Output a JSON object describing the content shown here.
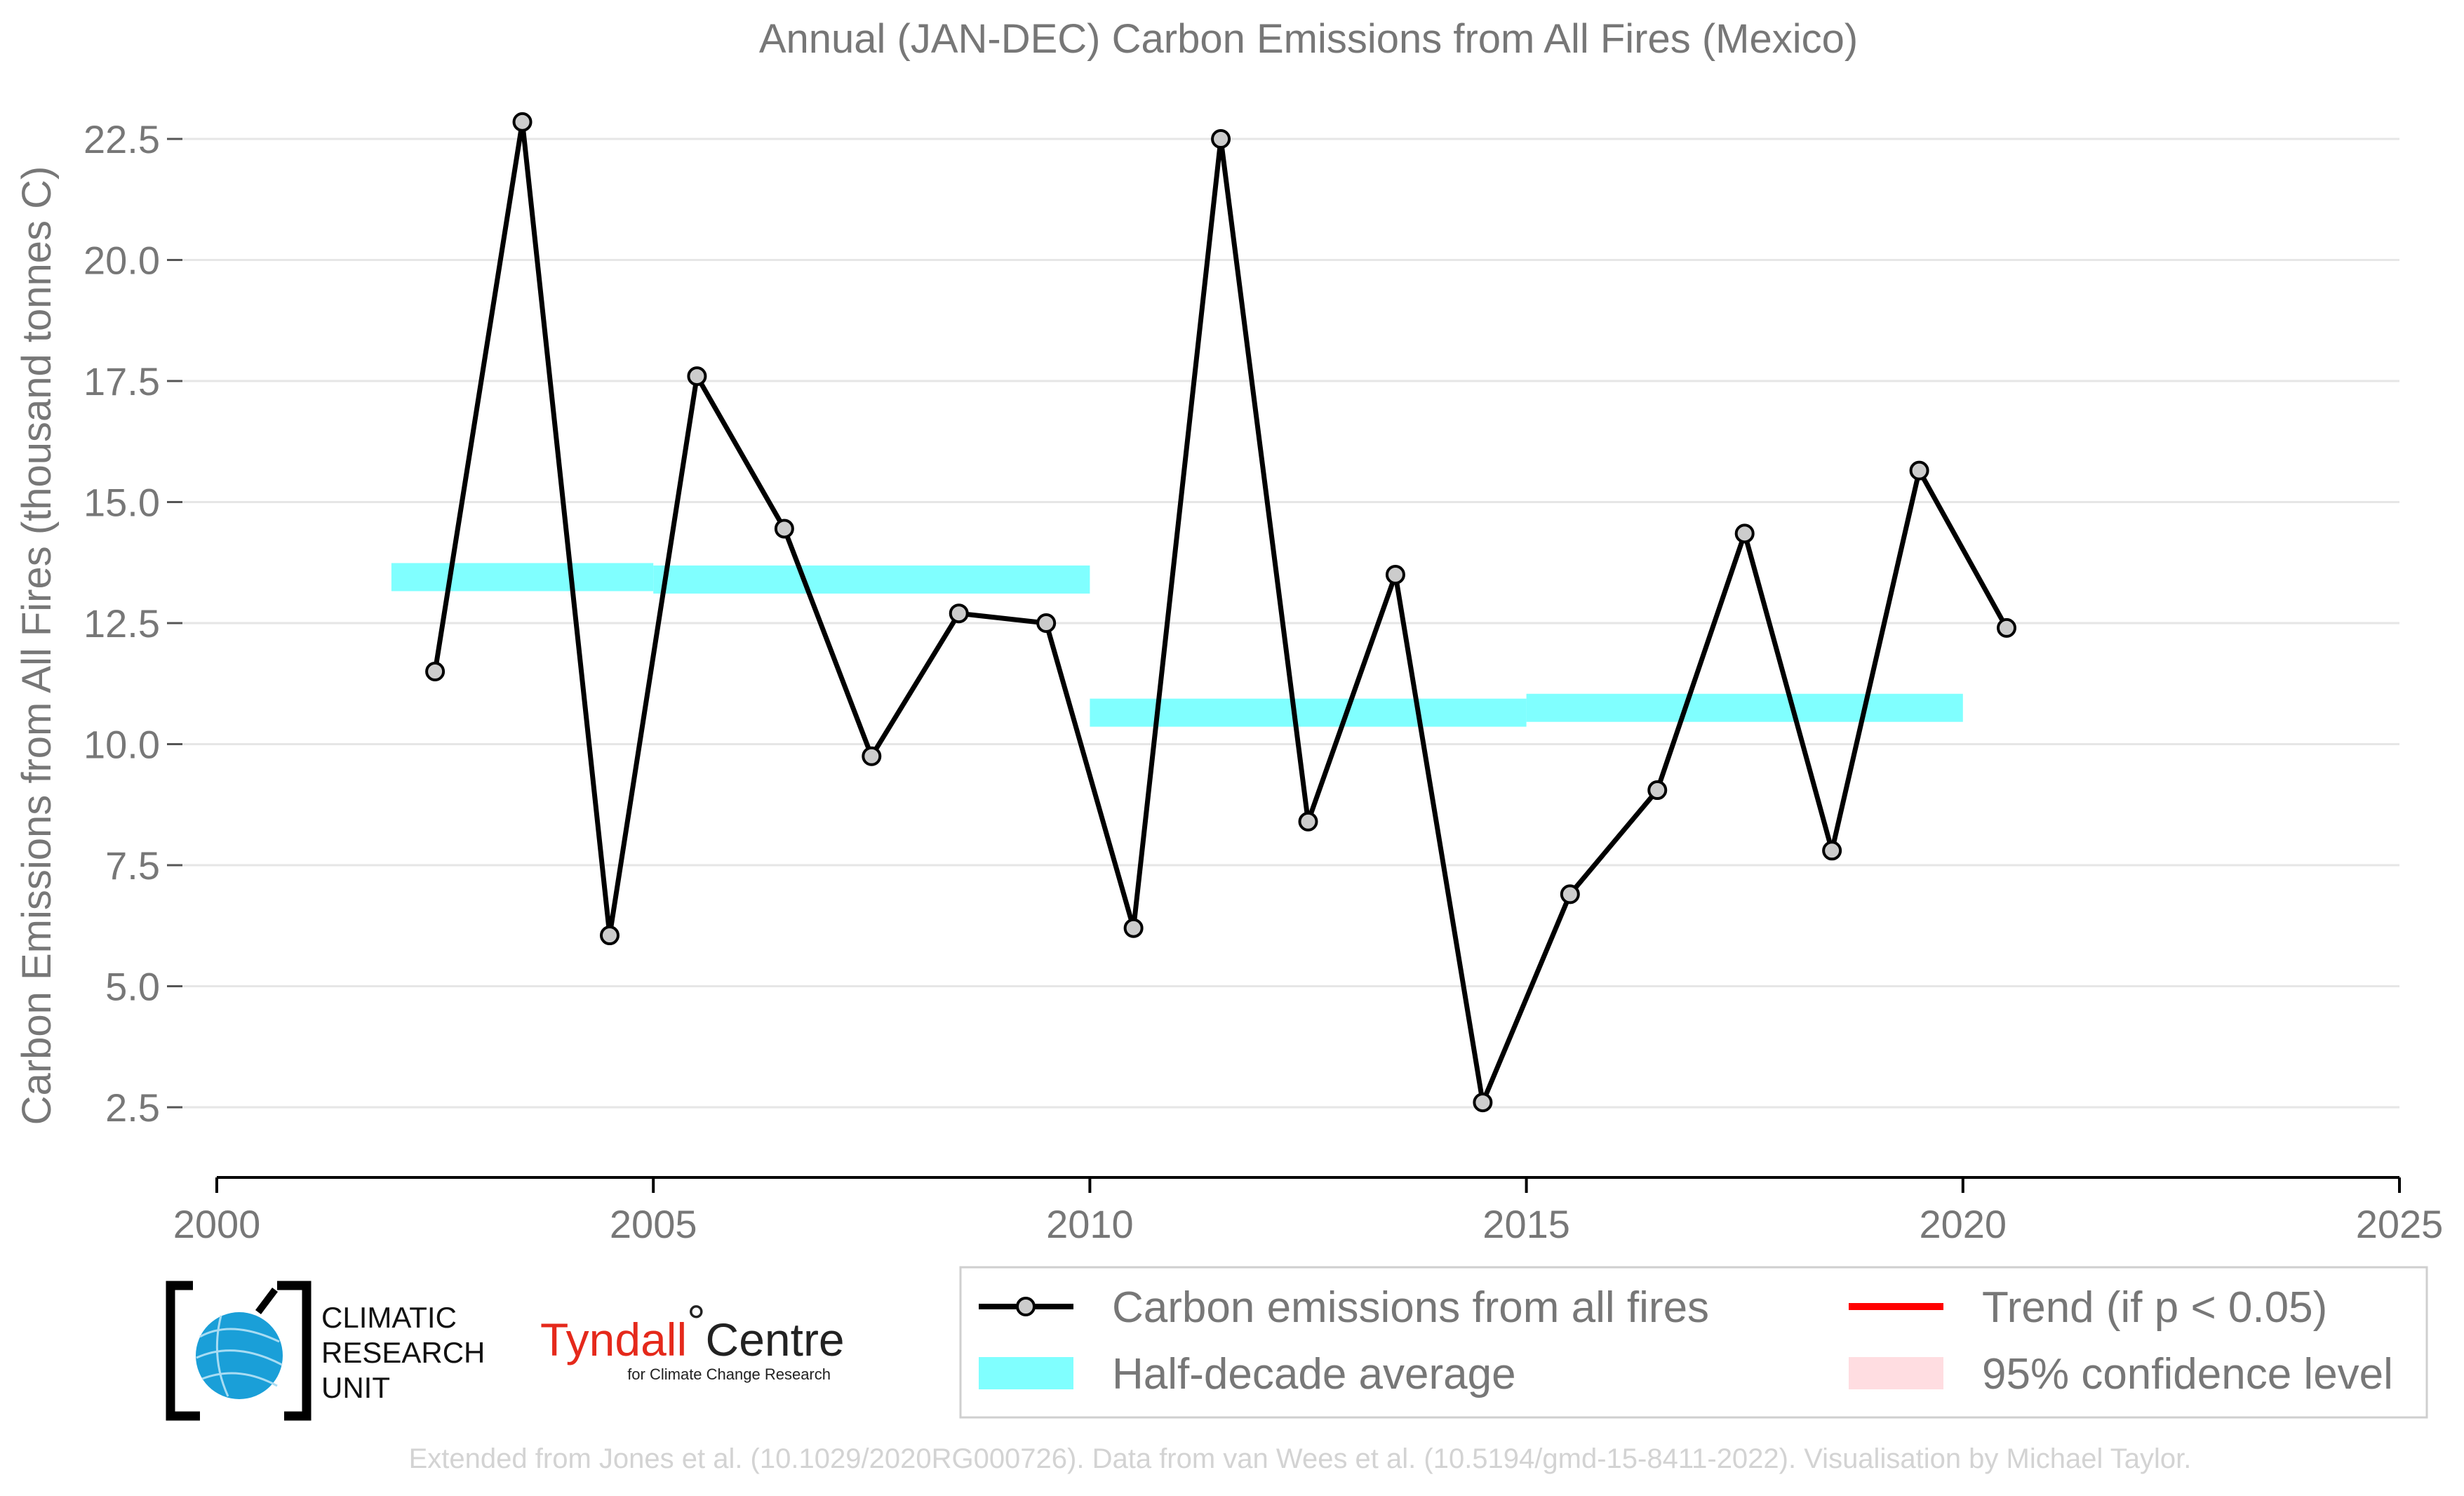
{
  "chart_data": {
    "type": "line",
    "title": "Annual (JAN-DEC) Carbon Emissions from All Fires (Mexico)",
    "xlabel": "",
    "ylabel": "Carbon Emissions from All Fires (thousand tonnes C)",
    "xlim": [
      2000,
      2025
    ],
    "ylim": [
      1.0,
      23.5
    ],
    "x_ticks": [
      2000,
      2005,
      2010,
      2015,
      2020,
      2025
    ],
    "y_ticks": [
      2.5,
      5.0,
      7.5,
      10.0,
      12.5,
      15.0,
      17.5,
      20.0,
      22.5
    ],
    "grid": "horizontal",
    "series": [
      {
        "name": "Carbon emissions from all fires",
        "color": "#000000",
        "marker_fill": "#cccccc",
        "x": [
          2002.5,
          2003.5,
          2004.5,
          2005.5,
          2006.5,
          2007.5,
          2008.5,
          2009.5,
          2010.5,
          2011.5,
          2012.5,
          2013.5,
          2014.5,
          2015.5,
          2016.5,
          2017.5,
          2018.5,
          2019.5,
          2020.5
        ],
        "values": [
          11.5,
          22.85,
          6.05,
          17.6,
          14.45,
          9.75,
          12.7,
          12.5,
          6.2,
          22.5,
          8.4,
          13.5,
          2.6,
          6.9,
          9.05,
          14.35,
          7.8,
          15.65,
          12.4
        ]
      }
    ],
    "half_decade_average": {
      "name": "Half-decade average",
      "color": "#80ffff",
      "segments": [
        {
          "x_start": 2002,
          "x_end": 2005,
          "value": 13.45
        },
        {
          "x_start": 2005,
          "x_end": 2010,
          "value": 13.4
        },
        {
          "x_start": 2010,
          "x_end": 2015,
          "value": 10.65
        },
        {
          "x_start": 2015,
          "x_end": 2020,
          "value": 10.75
        }
      ]
    },
    "legend": {
      "placement": "bottom",
      "entries": [
        {
          "label": "Carbon emissions from all fires",
          "type": "line-marker",
          "color": "#000000"
        },
        {
          "label": "Trend (if p < 0.05)",
          "type": "line",
          "color": "#ff0000"
        },
        {
          "label": "Half-decade average",
          "type": "band",
          "color": "#80ffff"
        },
        {
          "label": "95% confidence level",
          "type": "band",
          "color": "#ffdde1"
        }
      ]
    }
  },
  "logos": {
    "cru": [
      "CLIMATIC",
      "RESEARCH",
      "UNIT"
    ],
    "tyndall": {
      "name_red": "Tyndall",
      "degree": "°",
      "name_dark": "Centre",
      "sub": "for Climate Change Research"
    }
  },
  "credit": "Extended from Jones et al. (10.1029/2020RG000726). Data from van Wees et al. (10.5194/gmd-15-8411-2022). Visualisation by Michael Taylor."
}
